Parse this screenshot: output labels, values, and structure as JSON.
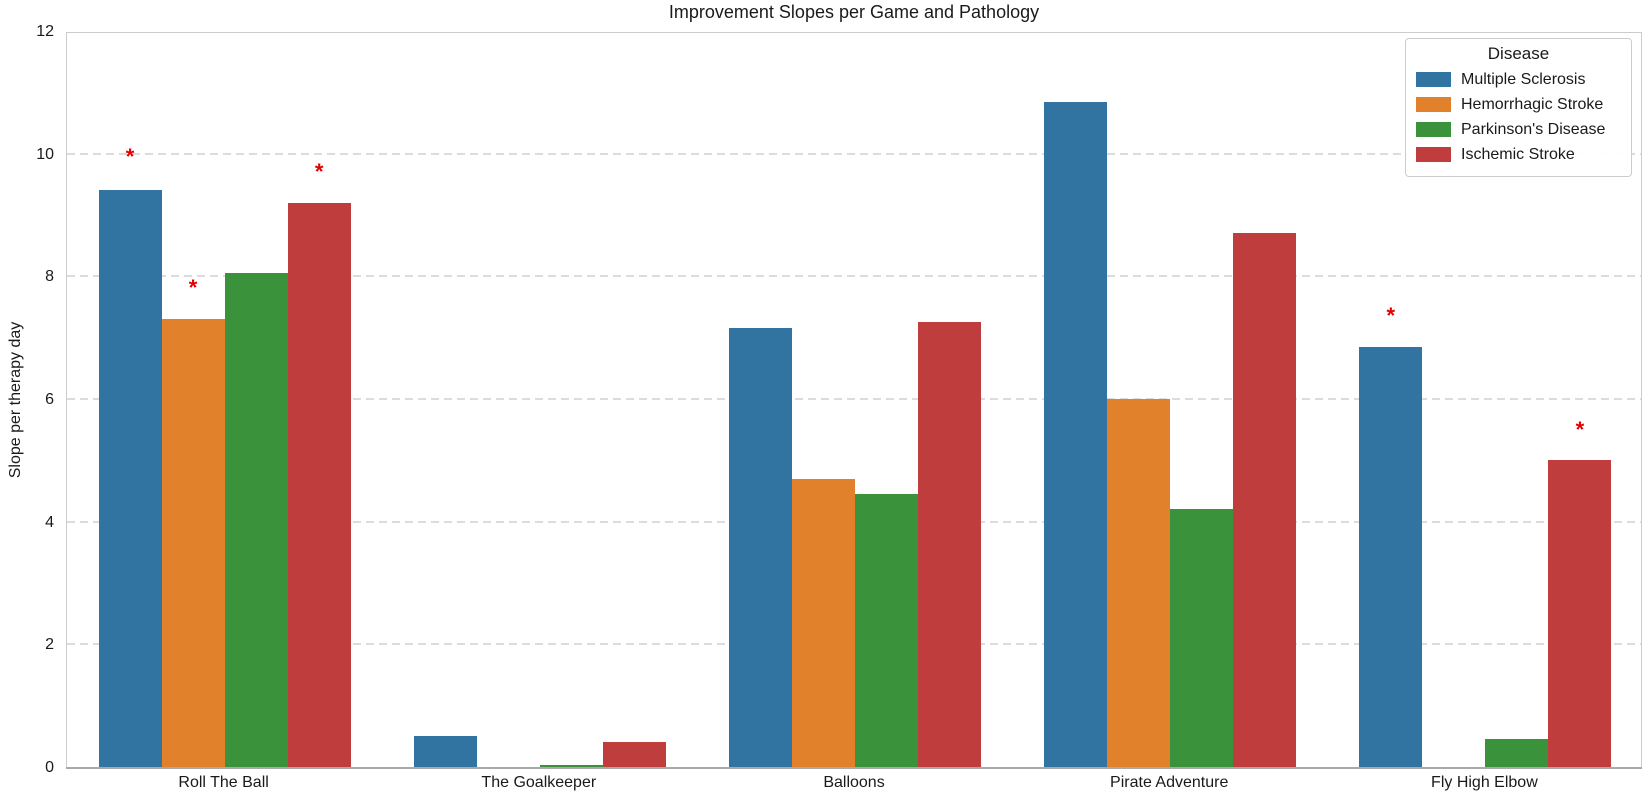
{
  "chart_data": {
    "type": "bar",
    "title": "Improvement Slopes per Game and Pathology",
    "xlabel": "",
    "ylabel": "Slope per therapy day",
    "categories": [
      "Roll The Ball",
      "The Goalkeeper",
      "Balloons",
      "Pirate Adventure",
      "Fly High Elbow"
    ],
    "series": [
      {
        "name": "Multiple Sclerosis",
        "color": "#3274a1",
        "values": [
          9.4,
          0.5,
          7.15,
          10.85,
          6.85
        ]
      },
      {
        "name": "Hemorrhagic Stroke",
        "color": "#e1812c",
        "values": [
          7.3,
          0,
          4.7,
          6.0,
          0
        ]
      },
      {
        "name": "Parkinson's Disease",
        "color": "#3a923a",
        "values": [
          8.05,
          0.03,
          4.45,
          4.2,
          0.45
        ]
      },
      {
        "name": "Ischemic Stroke",
        "color": "#c03d3e",
        "values": [
          9.2,
          0.4,
          7.25,
          8.7,
          5.0
        ]
      }
    ],
    "ylim": [
      0,
      12
    ],
    "yticks": [
      0,
      2,
      4,
      6,
      8,
      10,
      12
    ],
    "grid": "horizontal-dashed",
    "legend": {
      "title": "Disease",
      "position": "upper-right"
    },
    "annotations": [
      {
        "category": "Roll The Ball",
        "series": "Multiple Sclerosis",
        "symbol": "*",
        "y": 10.05
      },
      {
        "category": "Roll The Ball",
        "series": "Hemorrhagic Stroke",
        "symbol": "*",
        "y": 7.9
      },
      {
        "category": "Roll The Ball",
        "series": "Ischemic Stroke",
        "symbol": "*",
        "y": 9.8
      },
      {
        "category": "Fly High Elbow",
        "series": "Multiple Sclerosis",
        "symbol": "*",
        "y": 7.45
      },
      {
        "category": "Fly High Elbow",
        "series": "Ischemic Stroke",
        "symbol": "*",
        "y": 5.6
      }
    ],
    "annotation_color": "#e50000"
  }
}
